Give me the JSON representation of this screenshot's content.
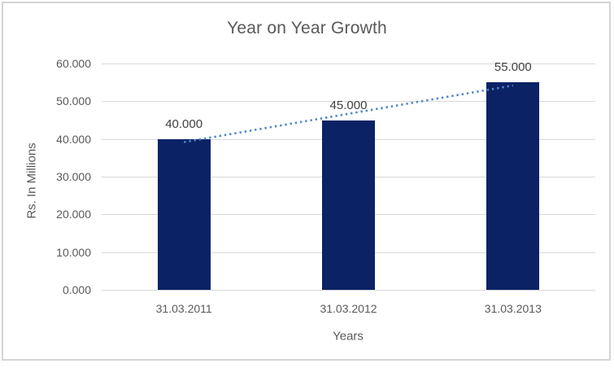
{
  "window": {
    "background": "#FFFFFF",
    "border_color": "#D4D4D4"
  },
  "chart_data": {
    "type": "bar",
    "title": "Year on Year Growth",
    "categories": [
      "31.03.2011",
      "31.03.2012",
      "31.03.2013"
    ],
    "values": [
      40,
      45,
      55
    ],
    "value_labels": [
      "40.000",
      "45.000",
      "55.000"
    ],
    "xlabel": "Years",
    "ylabel": "Rs. In Millions",
    "ylim": [
      0,
      60
    ],
    "ytick_step": 10,
    "ytick_labels": [
      "0.000",
      "10.000",
      "20.000",
      "30.000",
      "40.000",
      "50.000",
      "60.000"
    ],
    "grid": true,
    "legend_position": "none",
    "bar_color": "#0B2265",
    "gridline_color": "#D9D9D9",
    "trendline": {
      "type": "linear",
      "style": "dotted",
      "color": "#4E87C8"
    },
    "text_colors": {
      "title": "#595959",
      "axis": "#595959",
      "data_label": "#404040"
    }
  }
}
